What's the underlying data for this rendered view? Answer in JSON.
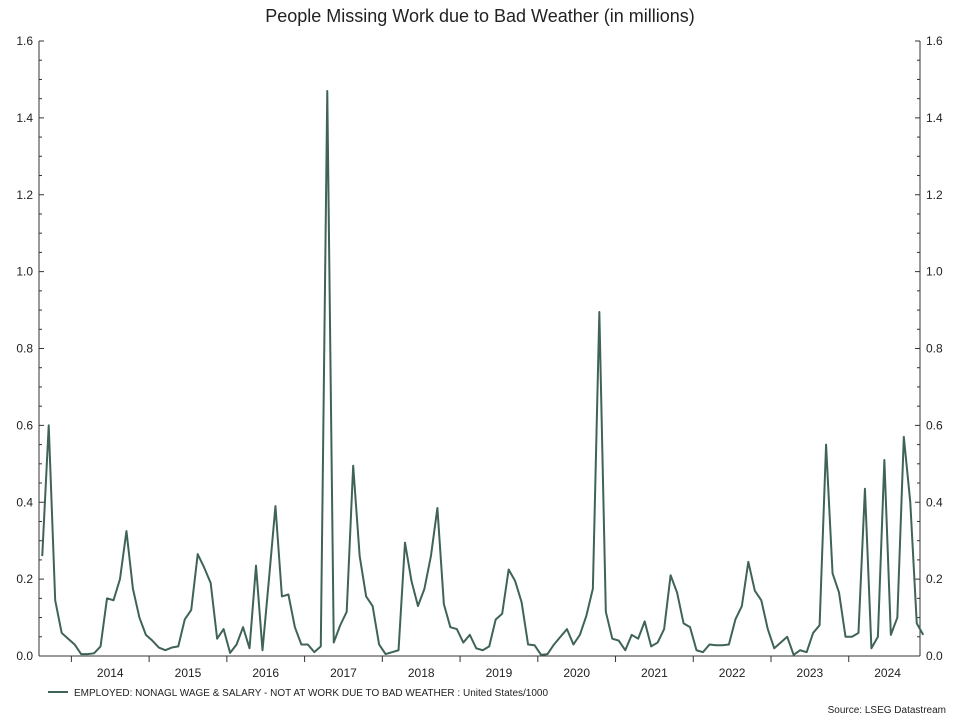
{
  "chart_data": {
    "type": "line",
    "title": "People Missing Work due to Bad Weather (in millions)",
    "xlabel": "",
    "ylabel": "",
    "ylim": [
      0,
      1.6
    ],
    "yticks": [
      "0.0",
      "0.2",
      "0.4",
      "0.6",
      "0.8",
      "1.0",
      "1.2",
      "1.4",
      "1.6"
    ],
    "secondary_yticks": [
      "0.0",
      "0.2",
      "0.4",
      "0.6",
      "0.8",
      "1.0",
      "1.2",
      "1.4",
      "1.6"
    ],
    "xticks": [
      "2014",
      "2015",
      "2016",
      "2017",
      "2018",
      "2019",
      "2020",
      "2021",
      "2022",
      "2023",
      "2024"
    ],
    "x_range": [
      "2013-08",
      "2024-11"
    ],
    "grid": false,
    "legend_position": "bottom-left",
    "source": "Source: LSEG Datastream",
    "series": [
      {
        "name": "EMPLOYED: NONAGL WAGE & SALARY - NOT AT WORK DUE TO BAD WEATHER : United States/1000",
        "color": "#3f6457",
        "points": [
          [
            "2013-08",
            0.26
          ],
          [
            "2013-09",
            0.6
          ],
          [
            "2013-10",
            0.145
          ],
          [
            "2013-11",
            0.06
          ],
          [
            "2013-12",
            0.045
          ],
          [
            "2014-01",
            0.03
          ],
          [
            "2014-02",
            0.005
          ],
          [
            "2014-03",
            0.005
          ],
          [
            "2014-04",
            0.007
          ],
          [
            "2014-05",
            0.025
          ],
          [
            "2014-06",
            0.15
          ],
          [
            "2014-07",
            0.145
          ],
          [
            "2014-08",
            0.2
          ],
          [
            "2014-09",
            0.325
          ],
          [
            "2014-10",
            0.175
          ],
          [
            "2014-11",
            0.1
          ],
          [
            "2014-12",
            0.055
          ],
          [
            "2015-01",
            0.04
          ],
          [
            "2015-02",
            0.022
          ],
          [
            "2015-03",
            0.015
          ],
          [
            "2015-04",
            0.022
          ],
          [
            "2015-05",
            0.025
          ],
          [
            "2015-06",
            0.095
          ],
          [
            "2015-07",
            0.12
          ],
          [
            "2015-08",
            0.265
          ],
          [
            "2015-09",
            0.23
          ],
          [
            "2015-10",
            0.19
          ],
          [
            "2015-11",
            0.045
          ],
          [
            "2015-12",
            0.07
          ],
          [
            "2016-01",
            0.008
          ],
          [
            "2016-02",
            0.03
          ],
          [
            "2016-03",
            0.075
          ],
          [
            "2016-04",
            0.02
          ],
          [
            "2016-05",
            0.235
          ],
          [
            "2016-06",
            0.015
          ],
          [
            "2016-07",
            0.2
          ],
          [
            "2016-08",
            0.39
          ],
          [
            "2016-09",
            0.155
          ],
          [
            "2016-10",
            0.16
          ],
          [
            "2016-11",
            0.075
          ],
          [
            "2016-12",
            0.03
          ],
          [
            "2017-01",
            0.03
          ],
          [
            "2017-02",
            0.01
          ],
          [
            "2017-03",
            0.025
          ],
          [
            "2017-04",
            1.47
          ],
          [
            "2017-05",
            0.035
          ],
          [
            "2017-06",
            0.08
          ],
          [
            "2017-07",
            0.115
          ],
          [
            "2017-08",
            0.495
          ],
          [
            "2017-09",
            0.26
          ],
          [
            "2017-10",
            0.155
          ],
          [
            "2017-11",
            0.13
          ],
          [
            "2017-12",
            0.03
          ],
          [
            "2018-01",
            0.005
          ],
          [
            "2018-02",
            0.01
          ],
          [
            "2018-03",
            0.015
          ],
          [
            "2018-04",
            0.295
          ],
          [
            "2018-05",
            0.195
          ],
          [
            "2018-06",
            0.13
          ],
          [
            "2018-07",
            0.175
          ],
          [
            "2018-08",
            0.26
          ],
          [
            "2018-09",
            0.385
          ],
          [
            "2018-10",
            0.135
          ],
          [
            "2018-11",
            0.075
          ],
          [
            "2018-12",
            0.07
          ],
          [
            "2019-01",
            0.035
          ],
          [
            "2019-02",
            0.055
          ],
          [
            "2019-03",
            0.02
          ],
          [
            "2019-04",
            0.015
          ],
          [
            "2019-05",
            0.025
          ],
          [
            "2019-06",
            0.095
          ],
          [
            "2019-07",
            0.11
          ],
          [
            "2019-08",
            0.225
          ],
          [
            "2019-09",
            0.195
          ],
          [
            "2019-10",
            0.14
          ],
          [
            "2019-11",
            0.03
          ],
          [
            "2019-12",
            0.028
          ],
          [
            "2020-01",
            0.003
          ],
          [
            "2020-02",
            0.005
          ],
          [
            "2020-03",
            0.03
          ],
          [
            "2020-04",
            0.05
          ],
          [
            "2020-05",
            0.07
          ],
          [
            "2020-06",
            0.03
          ],
          [
            "2020-07",
            0.055
          ],
          [
            "2020-08",
            0.105
          ],
          [
            "2020-09",
            0.175
          ],
          [
            "2020-10",
            0.895
          ],
          [
            "2020-11",
            0.115
          ],
          [
            "2020-12",
            0.045
          ],
          [
            "2021-01",
            0.04
          ],
          [
            "2021-02",
            0.015
          ],
          [
            "2021-03",
            0.055
          ],
          [
            "2021-04",
            0.045
          ],
          [
            "2021-05",
            0.09
          ],
          [
            "2021-06",
            0.025
          ],
          [
            "2021-07",
            0.035
          ],
          [
            "2021-08",
            0.07
          ],
          [
            "2021-09",
            0.21
          ],
          [
            "2021-10",
            0.165
          ],
          [
            "2021-11",
            0.085
          ],
          [
            "2021-12",
            0.075
          ],
          [
            "2022-01",
            0.015
          ],
          [
            "2022-02",
            0.01
          ],
          [
            "2022-03",
            0.03
          ],
          [
            "2022-04",
            0.028
          ],
          [
            "2022-05",
            0.028
          ],
          [
            "2022-06",
            0.03
          ],
          [
            "2022-07",
            0.095
          ],
          [
            "2022-08",
            0.13
          ],
          [
            "2022-09",
            0.245
          ],
          [
            "2022-10",
            0.17
          ],
          [
            "2022-11",
            0.145
          ],
          [
            "2022-12",
            0.07
          ],
          [
            "2023-01",
            0.02
          ],
          [
            "2023-02",
            0.035
          ],
          [
            "2023-03",
            0.05
          ],
          [
            "2023-04",
            0.003
          ],
          [
            "2023-05",
            0.015
          ],
          [
            "2023-06",
            0.01
          ],
          [
            "2023-07",
            0.06
          ],
          [
            "2023-08",
            0.08
          ],
          [
            "2023-09",
            0.55
          ],
          [
            "2023-10",
            0.215
          ],
          [
            "2023-11",
            0.165
          ],
          [
            "2023-12",
            0.05
          ],
          [
            "2024-01",
            0.05
          ],
          [
            "2024-02",
            0.06
          ],
          [
            "2024-03",
            0.435
          ],
          [
            "2024-04",
            0.02
          ],
          [
            "2024-05",
            0.05
          ],
          [
            "2024-06",
            0.51
          ],
          [
            "2024-07",
            0.055
          ],
          [
            "2024-08",
            0.1
          ],
          [
            "2024-09",
            0.57
          ],
          [
            "2024-10",
            0.4
          ],
          [
            "2024-11",
            0.085
          ],
          [
            "2024-12",
            0.055
          ]
        ]
      }
    ]
  }
}
